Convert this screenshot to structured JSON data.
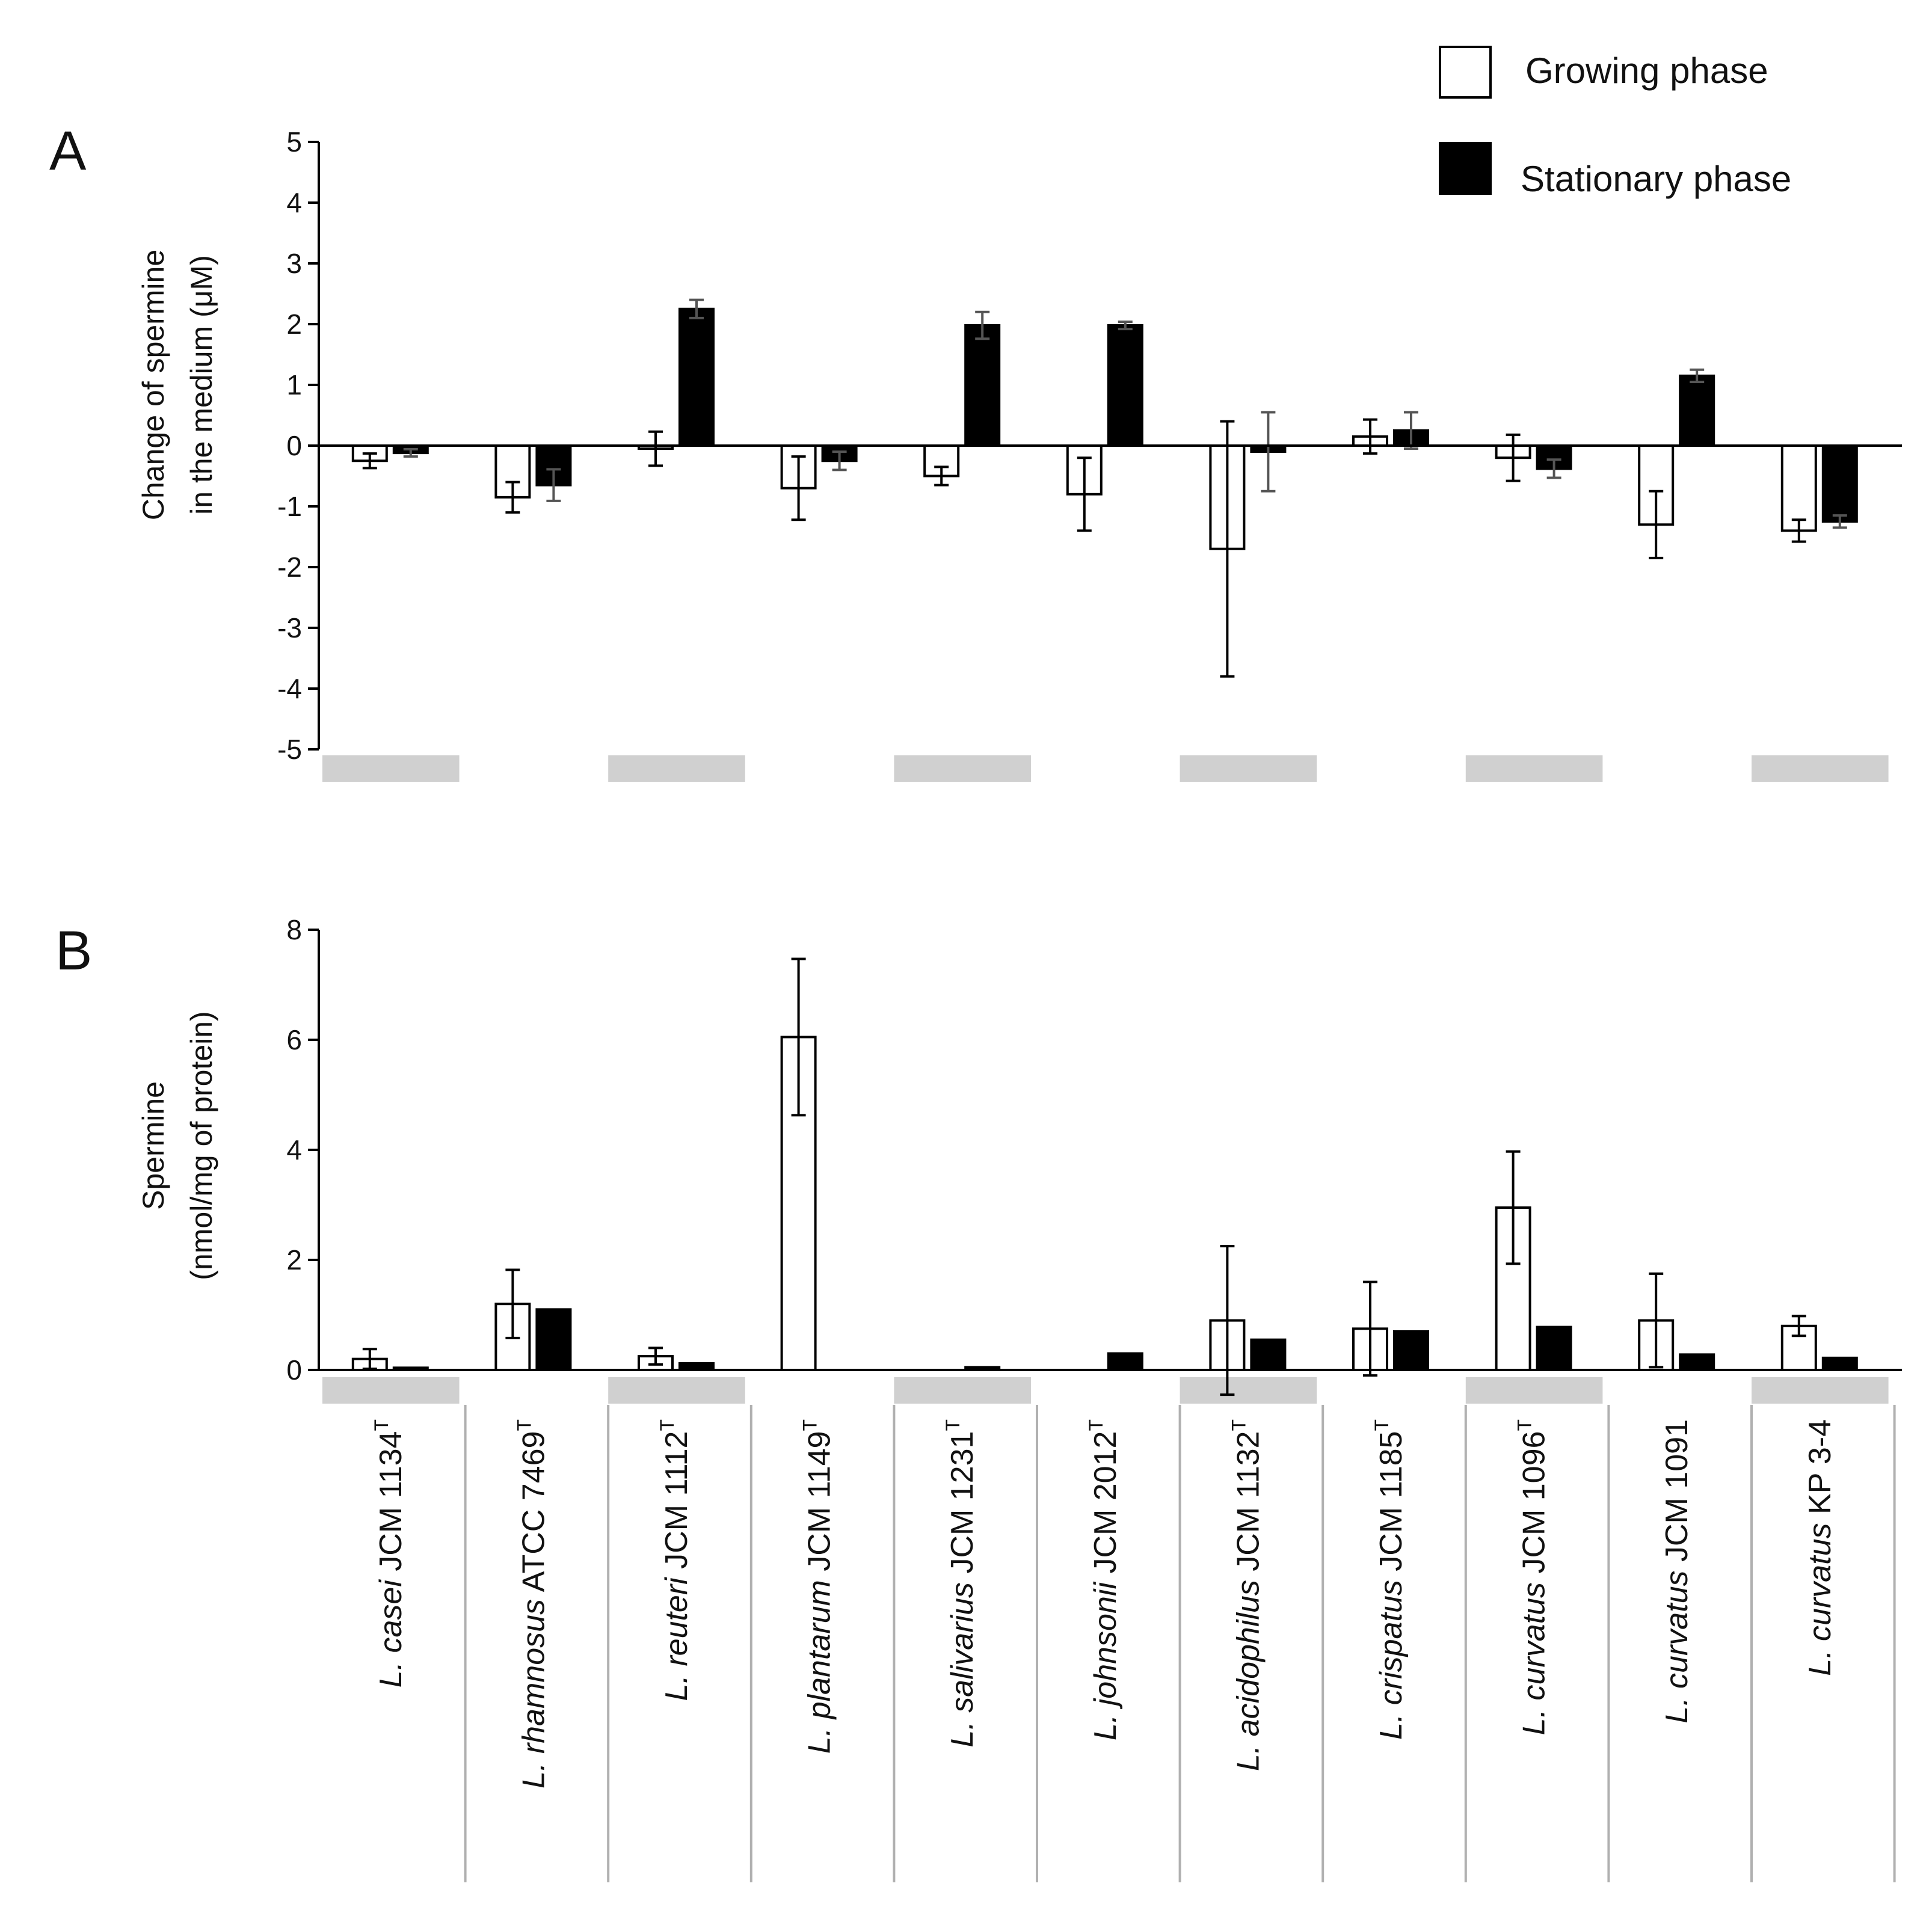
{
  "legend": {
    "growing": "Growing phase",
    "stationary": "Stationary phase"
  },
  "colors": {
    "growing_fill": "#ffffff",
    "stationary_fill": "#000000",
    "axis": "#000000",
    "band": "#d0d0d0",
    "separator": "#b0b0b0"
  },
  "strains": [
    {
      "italic": "L. casei",
      "rest": " JCM 1134",
      "sup": "T"
    },
    {
      "italic": "L. rhamnosus",
      "rest": " ATCC 7469",
      "sup": "T"
    },
    {
      "italic": "L. reuteri",
      "rest": " JCM 1112",
      "sup": "T"
    },
    {
      "italic": "L. plantarum",
      "rest": " JCM 1149",
      "sup": "T"
    },
    {
      "italic": "L. salivarius",
      "rest": " JCM 1231",
      "sup": "T"
    },
    {
      "italic": "L. johnsonii",
      "rest": " JCM 2012",
      "sup": "T"
    },
    {
      "italic": "L. acidophilus",
      "rest": " JCM 1132",
      "sup": "T"
    },
    {
      "italic": "L. crispatus",
      "rest": " JCM 1185",
      "sup": "T"
    },
    {
      "italic": "L. curvatus",
      "rest": " JCM 1096",
      "sup": "T"
    },
    {
      "italic": "L. curvatus",
      "rest": " JCM 1091",
      "sup": ""
    },
    {
      "italic": "L. curvatus",
      "rest": " KP 3-4",
      "sup": ""
    }
  ],
  "chart_data": [
    {
      "panel": "A",
      "type": "bar",
      "ylabel_line1": "Change of spermine",
      "ylabel_line2": "in the medium (μM)",
      "ylim": [
        -5,
        5
      ],
      "yticks": [
        -5,
        -4,
        -3,
        -2,
        -1,
        0,
        1,
        2,
        3,
        4,
        5
      ],
      "series": [
        {
          "name": "Growing phase",
          "values": [
            -0.25,
            -0.85,
            -0.05,
            -0.7,
            -0.5,
            -0.8,
            -1.7,
            0.15,
            -0.2,
            -1.3,
            -1.4
          ],
          "errors": [
            0.12,
            0.25,
            0.28,
            0.52,
            0.15,
            0.6,
            2.1,
            0.28,
            0.38,
            0.55,
            0.18
          ]
        },
        {
          "name": "Stationary phase",
          "values": [
            -0.12,
            -0.65,
            2.25,
            -0.25,
            1.98,
            1.98,
            -0.1,
            0.25,
            -0.38,
            1.15,
            -1.25
          ],
          "errors": [
            0.06,
            0.26,
            0.15,
            0.15,
            0.22,
            0.06,
            0.65,
            0.3,
            0.15,
            0.1,
            0.1
          ]
        }
      ]
    },
    {
      "panel": "B",
      "type": "bar",
      "ylabel_line1": "Spermine",
      "ylabel_line2": "(nmol/mg of protein)",
      "ylim": [
        0,
        8
      ],
      "yticks": [
        0,
        2,
        4,
        6,
        8
      ],
      "series": [
        {
          "name": "Growing phase",
          "values": [
            0.2,
            1.2,
            0.25,
            6.05,
            0,
            0,
            0.9,
            0.75,
            2.95,
            0.9,
            0.8
          ],
          "errors": [
            0.18,
            0.62,
            0.15,
            1.42,
            0,
            0,
            1.35,
            0.85,
            1.02,
            0.85,
            0.18
          ]
        },
        {
          "name": "Stationary phase",
          "values": [
            0.04,
            1.1,
            0.12,
            0,
            0.05,
            0.3,
            0.55,
            0.7,
            0.78,
            0.28,
            0.22
          ]
        }
      ]
    }
  ]
}
